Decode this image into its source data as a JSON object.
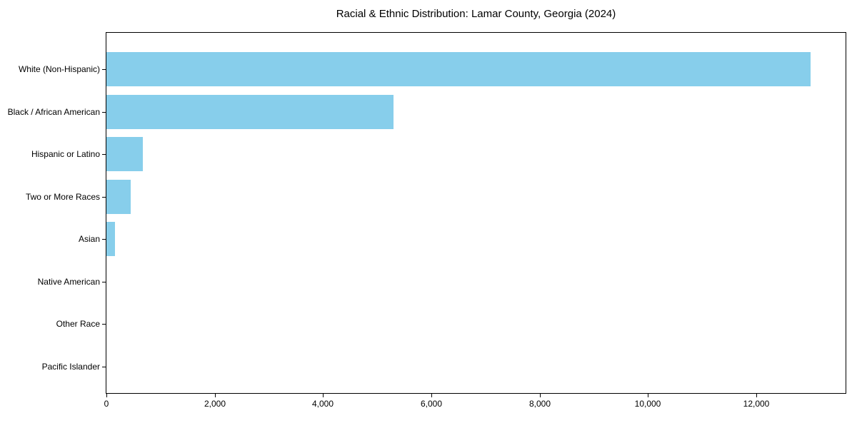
{
  "title": "Racial & Ethnic Distribution: Lamar County, Georgia (2024)",
  "colors": {
    "bar": "#87CEEB",
    "axis": "#000000",
    "background": "#FFFFFF",
    "text": "#000000"
  },
  "chart_data": {
    "type": "bar",
    "orientation": "horizontal",
    "title": "Racial & Ethnic Distribution: Lamar County, Georgia (2024)",
    "xlabel": "",
    "ylabel": "",
    "categories": [
      "White (Non-Hispanic)",
      "Black / African American",
      "Hispanic or Latino",
      "Two or More Races",
      "Asian",
      "Native American",
      "Other Race",
      "Pacific Islander"
    ],
    "values": [
      13000,
      5300,
      675,
      450,
      160,
      0,
      0,
      0
    ],
    "xlim": [
      0,
      13650
    ],
    "xticks": [
      0,
      2000,
      4000,
      6000,
      8000,
      10000,
      12000
    ],
    "xtick_labels": [
      "0",
      "2,000",
      "4,000",
      "6,000",
      "8,000",
      "10,000",
      "12,000"
    ],
    "grid": false,
    "legend": null,
    "bar_color": "#87CEEB"
  }
}
